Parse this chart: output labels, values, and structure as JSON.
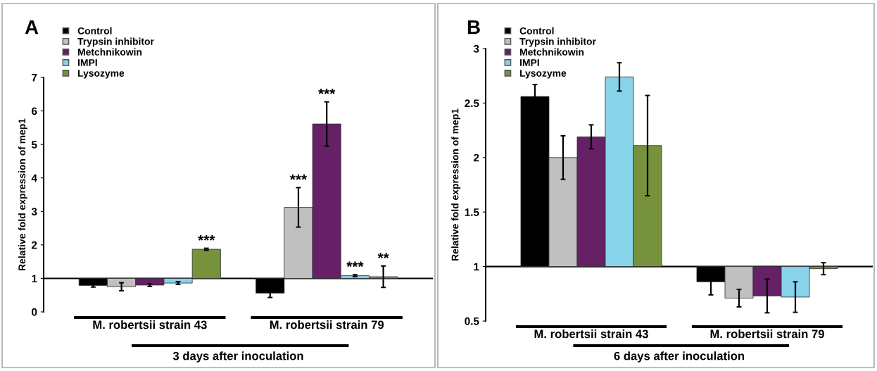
{
  "chart_data": [
    {
      "type": "bar",
      "title": "A",
      "ylabel": "Relative fold expression of mep1",
      "categories": [
        "M. robertsii strain 43",
        "M. robertsii strain 79"
      ],
      "ylim": [
        0,
        7
      ],
      "yticks": [
        0,
        1,
        2,
        3,
        4,
        5,
        6,
        7
      ],
      "legend": "top left",
      "ref_lines": [
        {
          "axis": "y",
          "value": 1,
          "color": "#000000"
        }
      ],
      "series": [
        {
          "name": "Control",
          "color": "#000000",
          "base": [
            1,
            1
          ],
          "values": [
            -0.21,
            -0.44
          ],
          "errors": [
            0.05,
            0.13
          ]
        },
        {
          "name": "Trypsin inhibitor",
          "color": "#c0c0c0",
          "base": [
            1,
            1
          ],
          "values": [
            -0.25,
            2.12
          ],
          "errors": [
            0.12,
            0.59
          ]
        },
        {
          "name": "Metchnikowin",
          "color": "#662066",
          "base": [
            1,
            1
          ],
          "values": [
            -0.2,
            4.61
          ],
          "errors": [
            0.04,
            0.66
          ]
        },
        {
          "name": "IMPI",
          "color": "#87d3ea",
          "base": [
            1,
            1
          ],
          "values": [
            -0.14,
            0.08
          ],
          "errors": [
            0.04,
            0.03
          ]
        },
        {
          "name": "Lysozyme",
          "color": "#76923c",
          "base": [
            1,
            1
          ],
          "values": [
            0.87,
            0.05
          ],
          "errors": [
            0.03,
            0.32
          ]
        }
      ],
      "annotations": [
        "***",
        "***",
        "***",
        "***",
        "**",
        "3 days after inoculation"
      ],
      "grid": false
    },
    {
      "type": "bar",
      "title": "B",
      "ylabel": "Relative fold expression of mep1",
      "categories": [
        "M. robertsii strain 43",
        "M. robertsii strain 79"
      ],
      "ylim": [
        0.5,
        3
      ],
      "yticks": [
        0.5,
        1,
        1.5,
        2,
        2.5,
        3
      ],
      "legend": "top left",
      "ref_lines": [
        {
          "axis": "y",
          "value": 1,
          "color": "#000000"
        }
      ],
      "series": [
        {
          "name": "Control",
          "color": "#000000",
          "base": [
            1,
            1
          ],
          "values": [
            1.56,
            -0.14
          ],
          "errors": [
            0.11,
            0.12
          ]
        },
        {
          "name": "Trypsin inhibitor",
          "color": "#c0c0c0",
          "base": [
            1,
            1
          ],
          "values": [
            1.0,
            -0.29
          ],
          "errors": [
            0.2,
            0.08
          ]
        },
        {
          "name": "Metchnikowin",
          "color": "#662066",
          "base": [
            1,
            1
          ],
          "values": [
            1.19,
            -0.27
          ],
          "errors": [
            0.11,
            0.155
          ]
        },
        {
          "name": "IMPI",
          "color": "#87d3ea",
          "base": [
            1,
            1
          ],
          "values": [
            1.74,
            -0.28
          ],
          "errors": [
            0.13,
            0.14
          ]
        },
        {
          "name": "Lysozyme",
          "color": "#76923c",
          "base": [
            1,
            1
          ],
          "values": [
            1.11,
            -0.02
          ],
          "errors": [
            0.46,
            0.055
          ]
        }
      ],
      "annotations": [
        "6 days after inoculation"
      ],
      "grid": false
    }
  ]
}
